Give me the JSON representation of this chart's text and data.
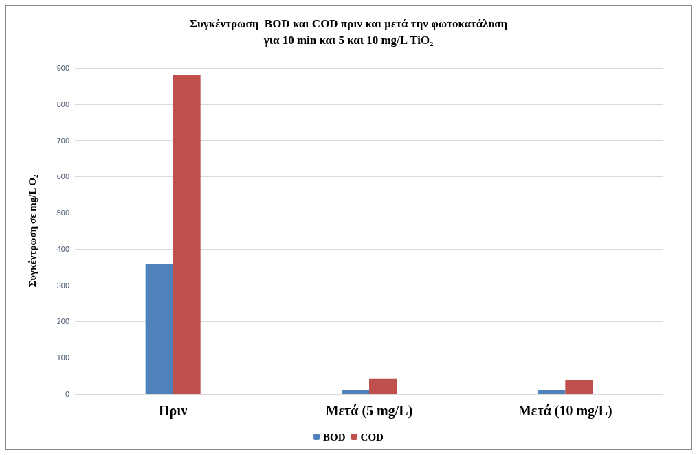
{
  "chart_data": {
    "type": "bar",
    "title": "Συγκέντρωση  BOD και COD πριν και μετά την φωτοκατάλυση\nγια 10 min και 5 και 10 mg/L TiO₂",
    "ylabel": "Συγκέντρωση σε mg/L O₂",
    "categories": [
      "Πριν",
      "Μετά (5 mg/L)",
      "Μετά (10 mg/L)"
    ],
    "series": [
      {
        "name": "BOD",
        "color": "#4f81bd",
        "values": [
          360,
          10,
          10
        ]
      },
      {
        "name": "COD",
        "color": "#c0504d",
        "values": [
          880,
          42,
          38
        ]
      }
    ],
    "ylim": [
      0,
      900
    ],
    "yticks": [
      0,
      100,
      200,
      300,
      400,
      500,
      600,
      700,
      800,
      900
    ],
    "grid": "y",
    "legend": "bottom"
  }
}
